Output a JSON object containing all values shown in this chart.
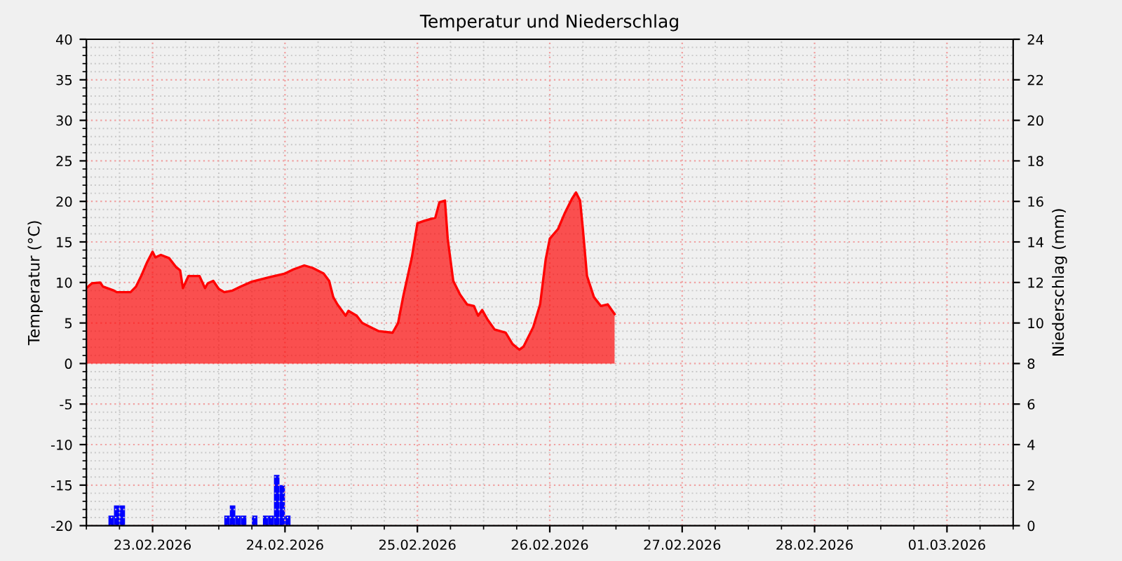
{
  "chart_data": {
    "type": "area",
    "title": "Temperatur und Niederschlag",
    "ylabel": "Temperatur (°C)",
    "y2label": "Niederschlag (mm)",
    "xlim": [
      "2026-02-23T00:00",
      "2026-03-02T00:00"
    ],
    "xticks": [
      {
        "value": "2026-02-23T12:00",
        "label": "23.02.2026"
      },
      {
        "value": "2026-02-24T12:00",
        "label": "24.02.2026"
      },
      {
        "value": "2026-02-25T12:00",
        "label": "25.02.2026"
      },
      {
        "value": "2026-02-26T12:00",
        "label": "26.02.2026"
      },
      {
        "value": "2026-02-27T12:00",
        "label": "27.02.2026"
      },
      {
        "value": "2026-02-28T12:00",
        "label": "28.02.2026"
      },
      {
        "value": "2026-03-01T12:00",
        "label": "01.03.2026"
      }
    ],
    "ylim": [
      -20,
      40
    ],
    "yticks": [
      -20,
      -15,
      -10,
      -5,
      0,
      5,
      10,
      15,
      20,
      25,
      30,
      35,
      40
    ],
    "y2lim": [
      0,
      24
    ],
    "y2ticks": [
      0,
      2,
      4,
      6,
      8,
      10,
      12,
      14,
      16,
      18,
      20,
      22,
      24
    ],
    "grid": true,
    "legend": false,
    "series": [
      {
        "color": "#ff0000",
        "x": [
          "2026-02-23T00:00",
          "2026-02-23T01:00",
          "2026-02-23T02:30",
          "2026-02-23T03:00",
          "2026-02-23T05:00",
          "2026-02-23T05:30",
          "2026-02-23T08:00",
          "2026-02-23T09:00",
          "2026-02-23T10:00",
          "2026-02-23T11:00",
          "2026-02-23T12:00",
          "2026-02-23T12:30",
          "2026-02-23T13:30",
          "2026-02-23T15:00",
          "2026-02-23T16:15",
          "2026-02-23T17:00",
          "2026-02-23T17:30",
          "2026-02-23T18:30",
          "2026-02-23T20:30",
          "2026-02-23T21:30",
          "2026-02-23T22:00",
          "2026-02-23T23:00",
          "2026-02-24T00:00",
          "2026-02-24T01:00",
          "2026-02-24T02:30",
          "2026-02-24T04:00",
          "2026-02-24T06:00",
          "2026-02-24T09:30",
          "2026-02-24T12:00",
          "2026-02-24T13:30",
          "2026-02-24T15:30",
          "2026-02-24T17:00",
          "2026-02-24T19:00",
          "2026-02-24T20:00",
          "2026-02-24T20:45",
          "2026-02-24T21:30",
          "2026-02-24T23:00",
          "2026-02-24T23:30",
          "2026-02-25T01:00",
          "2026-02-25T02:00",
          "2026-02-25T03:30",
          "2026-02-25T05:00",
          "2026-02-25T07:30",
          "2026-02-25T08:30",
          "2026-02-25T09:30",
          "2026-02-25T11:00",
          "2026-02-25T12:00",
          "2026-02-25T13:15",
          "2026-02-25T15:15",
          "2026-02-25T16:00",
          "2026-02-25T17:00",
          "2026-02-25T17:30",
          "2026-02-25T18:30",
          "2026-02-25T19:45",
          "2026-02-25T21:00",
          "2026-02-25T22:15",
          "2026-02-25T23:00",
          "2026-02-25T23:45",
          "2026-02-26T00:45",
          "2026-02-26T02:00",
          "2026-02-26T04:00",
          "2026-02-26T05:15",
          "2026-02-26T06:30",
          "2026-02-26T07:15",
          "2026-02-26T09:00",
          "2026-02-26T10:15",
          "2026-02-26T11:15",
          "2026-02-26T12:00",
          "2026-02-26T13:30",
          "2026-02-26T14:45",
          "2026-02-26T16:00",
          "2026-02-26T16:45",
          "2026-02-26T17:30",
          "2026-02-26T18:00",
          "2026-02-26T18:45",
          "2026-02-26T20:00",
          "2026-02-26T21:15",
          "2026-02-26T22:30",
          "2026-02-26T23:45"
        ],
        "values": [
          9.3,
          9.9,
          10.0,
          9.5,
          9.0,
          8.8,
          8.8,
          9.5,
          10.9,
          12.5,
          13.8,
          13.1,
          13.4,
          13.0,
          11.9,
          11.5,
          9.3,
          10.8,
          10.8,
          9.3,
          9.9,
          10.2,
          9.2,
          8.8,
          9.0,
          9.5,
          10.1,
          10.7,
          11.1,
          11.6,
          12.1,
          11.8,
          11.1,
          10.2,
          8.2,
          7.3,
          5.9,
          6.5,
          5.9,
          5.0,
          4.5,
          4.0,
          3.8,
          5.0,
          8.5,
          13.1,
          17.3,
          17.6,
          18.0,
          19.9,
          20.1,
          15.4,
          10.2,
          8.5,
          7.3,
          7.1,
          5.9,
          6.6,
          5.4,
          4.2,
          3.8,
          2.4,
          1.7,
          2.1,
          4.5,
          7.3,
          12.8,
          15.4,
          16.6,
          18.6,
          20.3,
          21.1,
          20.1,
          16.6,
          10.8,
          8.2,
          7.1,
          7.3,
          6.1
        ]
      },
      {
        "type": "bar",
        "axis": "y2",
        "color": "#0000ff",
        "x": [
          "2026-02-23T04:00",
          "2026-02-23T05:00",
          "2026-02-23T06:00",
          "2026-02-24T01:00",
          "2026-02-24T02:00",
          "2026-02-24T03:00",
          "2026-02-24T04:00",
          "2026-02-24T06:00",
          "2026-02-24T08:00",
          "2026-02-24T09:00",
          "2026-02-24T10:00",
          "2026-02-24T11:00",
          "2026-02-24T12:00"
        ],
        "values": [
          0.5,
          1.0,
          1.0,
          0.5,
          1.0,
          0.5,
          0.5,
          0.5,
          0.5,
          0.5,
          2.5,
          2.0,
          0.5
        ]
      }
    ]
  }
}
